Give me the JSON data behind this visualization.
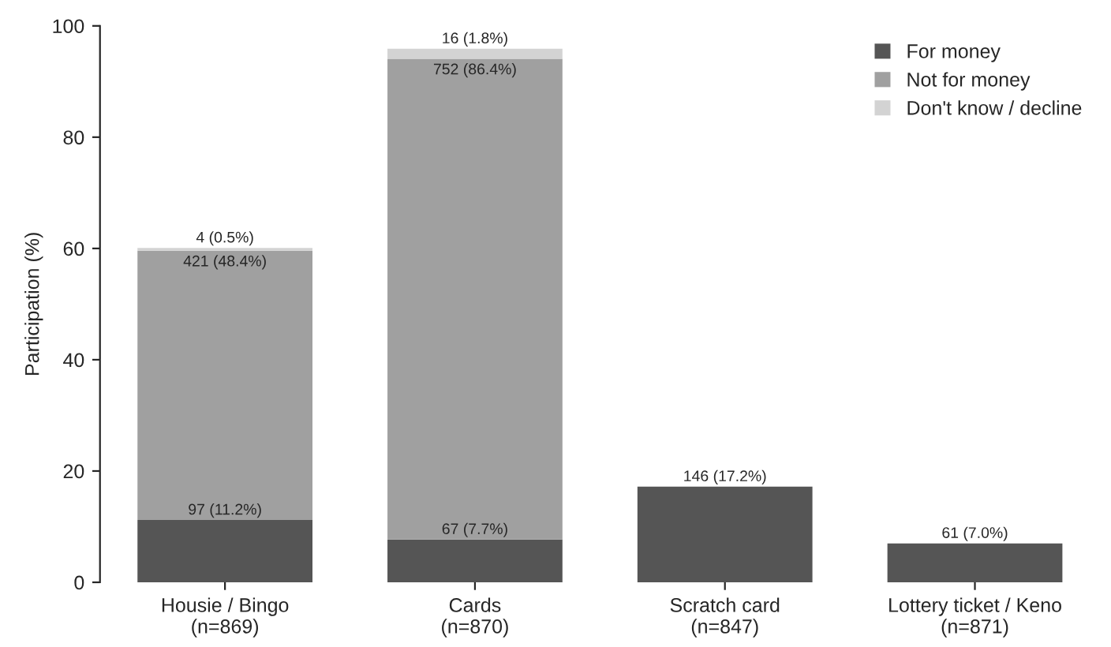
{
  "chart_data": {
    "type": "bar",
    "stacked": true,
    "ylabel": "Participation (%)",
    "categories": [
      "Housie / Bingo\n(n=869)",
      "Cards\n(n=870)",
      "Scratch card\n(n=847)",
      "Lottery ticket / Keno\n(n=871)"
    ],
    "series": [
      {
        "name": "For money",
        "color": "#555555",
        "values": [
          11.2,
          7.7,
          17.2,
          7.0
        ],
        "value_labels": [
          "97 (11.2%)",
          "67 (7.7%)",
          "146 (17.2%)",
          "61 (7.0%)"
        ]
      },
      {
        "name": "Not for money",
        "color": "#a0a0a0",
        "values": [
          48.4,
          86.4,
          0,
          0
        ],
        "value_labels": [
          "421 (48.4%)",
          "752 (86.4%)",
          null,
          null
        ]
      },
      {
        "name": "Don't know / decline",
        "color": "#d3d3d3",
        "values": [
          0.5,
          1.8,
          0,
          0
        ],
        "value_labels": [
          "4 (0.5%)",
          "16 (1.8%)",
          null,
          null
        ]
      }
    ],
    "ylim": [
      0,
      100
    ],
    "yticks": [
      0,
      20,
      40,
      60,
      80,
      100
    ],
    "grid": false,
    "legend": "top right"
  }
}
